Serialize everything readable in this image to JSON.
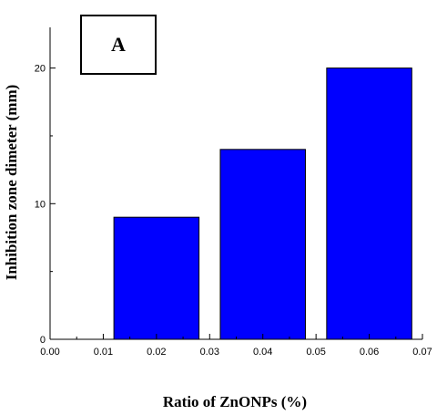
{
  "chart_data": {
    "type": "bar",
    "panel_label": "A",
    "xlabel": "Ratio of ZnONPs (%)",
    "ylabel": "Inhibition zone dimeter (mm)",
    "x_ticks": [
      "0.00",
      "0.01",
      "0.02",
      "0.03",
      "0.04",
      "0.05",
      "0.06",
      "0.07"
    ],
    "y_ticks": [
      "0",
      "10",
      "20"
    ],
    "xlim": [
      0,
      0.07
    ],
    "ylim": [
      0,
      23
    ],
    "bar_width": 0.016,
    "points": [
      {
        "x": 0.02,
        "y": 9
      },
      {
        "x": 0.04,
        "y": 14
      },
      {
        "x": 0.06,
        "y": 20
      }
    ],
    "bar_color": "#0000ff",
    "grid": false
  }
}
